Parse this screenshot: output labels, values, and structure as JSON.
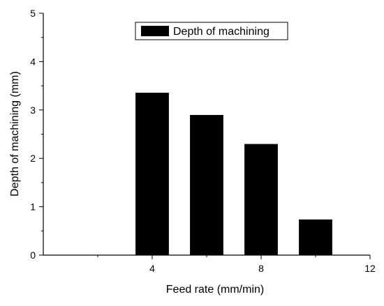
{
  "chart_data": {
    "type": "bar",
    "x": [
      4,
      6,
      8,
      10
    ],
    "values": [
      3.35,
      2.89,
      2.29,
      0.73
    ],
    "xlim": [
      0,
      12
    ],
    "ylim": [
      0,
      5
    ],
    "xticks": [
      4,
      8,
      12
    ],
    "xticks_minor": [
      2,
      6,
      10
    ],
    "yticks": [
      0,
      1,
      2,
      3,
      4,
      5
    ],
    "bar_width": 1.2,
    "xlabel": "Feed rate (mm/min)",
    "ylabel": "Depth of machining (mm)",
    "series": [
      {
        "name": "Depth of machining",
        "color": "#000000"
      }
    ],
    "legend_position": "top-right",
    "grid": false
  }
}
